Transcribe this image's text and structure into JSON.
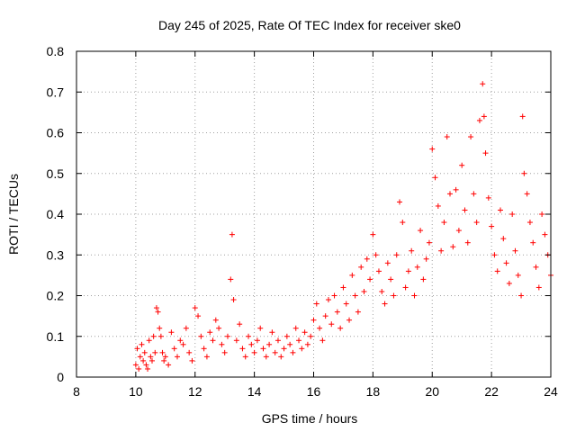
{
  "chart_data": {
    "type": "scatter",
    "title": "Day 245 of 2025, Rate Of TEC Index for receiver ske0",
    "xlabel": "GPS time / hours",
    "ylabel": "ROTI / TECUs",
    "xlim": [
      8,
      24
    ],
    "ylim": [
      0,
      0.8
    ],
    "xticks": [
      "8",
      "10",
      "12",
      "14",
      "16",
      "18",
      "20",
      "22",
      "24"
    ],
    "yticks": [
      "0",
      "0.1",
      "0.2",
      "0.3",
      "0.4",
      "0.5",
      "0.6",
      "0.7",
      "0.8"
    ],
    "grid": true,
    "marker": "+",
    "color": "#ff0000",
    "series": [
      {
        "x": [
          10.0,
          10.05,
          10.1,
          10.15,
          10.2,
          10.25,
          10.3,
          10.35,
          10.4,
          10.45,
          10.5,
          10.55,
          10.6,
          10.65,
          10.7,
          10.75,
          10.8,
          10.85,
          10.9,
          10.95,
          11.0,
          11.1,
          11.2,
          11.3,
          11.4,
          11.5,
          11.6,
          11.7,
          11.8,
          11.9,
          12.0,
          12.1,
          12.2,
          12.3,
          12.4,
          12.5,
          12.6,
          12.7,
          12.8,
          12.9,
          13.0,
          13.1,
          13.2,
          13.25,
          13.3,
          13.4,
          13.5,
          13.6,
          13.7,
          13.8,
          13.9,
          14.0,
          14.1,
          14.2,
          14.3,
          14.4,
          14.5,
          14.6,
          14.7,
          14.8,
          14.9,
          15.0,
          15.1,
          15.2,
          15.3,
          15.4,
          15.5,
          15.6,
          15.7,
          15.8,
          15.9,
          16.0,
          16.1,
          16.2,
          16.3,
          16.4,
          16.5,
          16.6,
          16.7,
          16.8,
          16.9,
          17.0,
          17.1,
          17.2,
          17.3,
          17.4,
          17.5,
          17.6,
          17.7,
          17.8,
          17.9,
          18.0,
          18.1,
          18.2,
          18.3,
          18.4,
          18.5,
          18.6,
          18.7,
          18.8,
          18.9,
          19.0,
          19.1,
          19.2,
          19.3,
          19.4,
          19.5,
          19.6,
          19.7,
          19.8,
          19.9,
          20.0,
          20.1,
          20.2,
          20.3,
          20.4,
          20.5,
          20.6,
          20.7,
          20.8,
          20.9,
          21.0,
          21.1,
          21.2,
          21.3,
          21.4,
          21.5,
          21.6,
          21.7,
          21.75,
          21.8,
          21.9,
          22.0,
          22.1,
          22.2,
          22.3,
          22.4,
          22.5,
          22.6,
          22.7,
          22.8,
          22.9,
          23.0,
          23.05,
          23.1,
          23.2,
          23.3,
          23.4,
          23.5,
          23.6,
          23.7,
          23.8,
          23.9,
          24.0
        ],
        "y": [
          0.03,
          0.07,
          0.02,
          0.05,
          0.08,
          0.04,
          0.06,
          0.03,
          0.02,
          0.09,
          0.05,
          0.04,
          0.1,
          0.06,
          0.17,
          0.16,
          0.12,
          0.1,
          0.06,
          0.04,
          0.05,
          0.03,
          0.11,
          0.07,
          0.05,
          0.09,
          0.08,
          0.12,
          0.06,
          0.04,
          0.17,
          0.15,
          0.1,
          0.07,
          0.05,
          0.11,
          0.09,
          0.14,
          0.12,
          0.08,
          0.06,
          0.1,
          0.24,
          0.35,
          0.19,
          0.09,
          0.13,
          0.07,
          0.05,
          0.1,
          0.08,
          0.06,
          0.09,
          0.12,
          0.07,
          0.05,
          0.08,
          0.11,
          0.06,
          0.09,
          0.05,
          0.07,
          0.1,
          0.08,
          0.06,
          0.12,
          0.09,
          0.07,
          0.11,
          0.08,
          0.1,
          0.14,
          0.18,
          0.12,
          0.09,
          0.15,
          0.19,
          0.13,
          0.2,
          0.16,
          0.12,
          0.22,
          0.18,
          0.14,
          0.25,
          0.2,
          0.16,
          0.27,
          0.21,
          0.29,
          0.24,
          0.35,
          0.3,
          0.26,
          0.21,
          0.18,
          0.28,
          0.24,
          0.2,
          0.3,
          0.43,
          0.38,
          0.22,
          0.26,
          0.31,
          0.2,
          0.27,
          0.36,
          0.24,
          0.29,
          0.33,
          0.56,
          0.49,
          0.42,
          0.31,
          0.38,
          0.59,
          0.45,
          0.32,
          0.46,
          0.36,
          0.52,
          0.41,
          0.33,
          0.59,
          0.45,
          0.38,
          0.63,
          0.72,
          0.64,
          0.55,
          0.44,
          0.37,
          0.3,
          0.26,
          0.41,
          0.34,
          0.28,
          0.23,
          0.4,
          0.31,
          0.25,
          0.2,
          0.64,
          0.5,
          0.45,
          0.38,
          0.33,
          0.27,
          0.22,
          0.4,
          0.35,
          0.3,
          0.25
        ]
      }
    ]
  }
}
